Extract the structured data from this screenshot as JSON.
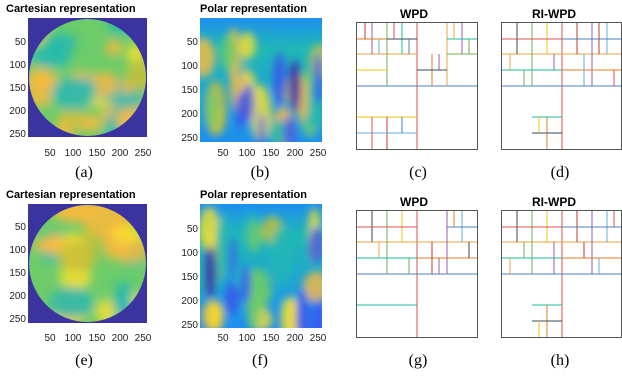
{
  "figure": {
    "panels": [
      {
        "id": "a",
        "title": "Cartesian representation",
        "caption": "(a)",
        "kind": "cartesian",
        "yticks": [
          "50",
          "100",
          "150",
          "200",
          "250"
        ],
        "xticks": [
          "50",
          "100",
          "150",
          "200",
          "250"
        ]
      },
      {
        "id": "b",
        "title": "Polar representation",
        "caption": "(b)",
        "kind": "polar",
        "yticks": [
          "50",
          "100",
          "150",
          "200",
          "250"
        ],
        "xticks": [
          "50",
          "100",
          "150",
          "200",
          "250"
        ]
      },
      {
        "id": "c",
        "title": "WPD",
        "caption": "(c)",
        "kind": "tree"
      },
      {
        "id": "d",
        "title": "RI-WPD",
        "caption": "(d)",
        "kind": "tree"
      },
      {
        "id": "e",
        "title": "Cartesian representation",
        "caption": "(e)",
        "kind": "cartesian",
        "yticks": [
          "50",
          "100",
          "150",
          "200",
          "250"
        ],
        "xticks": [
          "50",
          "100",
          "150",
          "200",
          "250"
        ]
      },
      {
        "id": "f",
        "title": "Polar representation",
        "caption": "(f)",
        "kind": "polar",
        "yticks": [
          "50",
          "100",
          "150",
          "200",
          "250"
        ],
        "xticks": [
          "50",
          "100",
          "150",
          "200",
          "250"
        ]
      },
      {
        "id": "g",
        "title": "WPD",
        "caption": "(g)",
        "kind": "tree"
      },
      {
        "id": "h",
        "title": "RI-WPD",
        "caption": "(h)",
        "kind": "tree"
      }
    ],
    "colors": {
      "background_blue": "#3b33a0",
      "colormap": [
        "#3e26a8",
        "#3b50ef",
        "#1e8ff0",
        "#1fb8b5",
        "#6dcc6a",
        "#c6c03a",
        "#fcba3d",
        "#f9e02a"
      ]
    }
  }
}
